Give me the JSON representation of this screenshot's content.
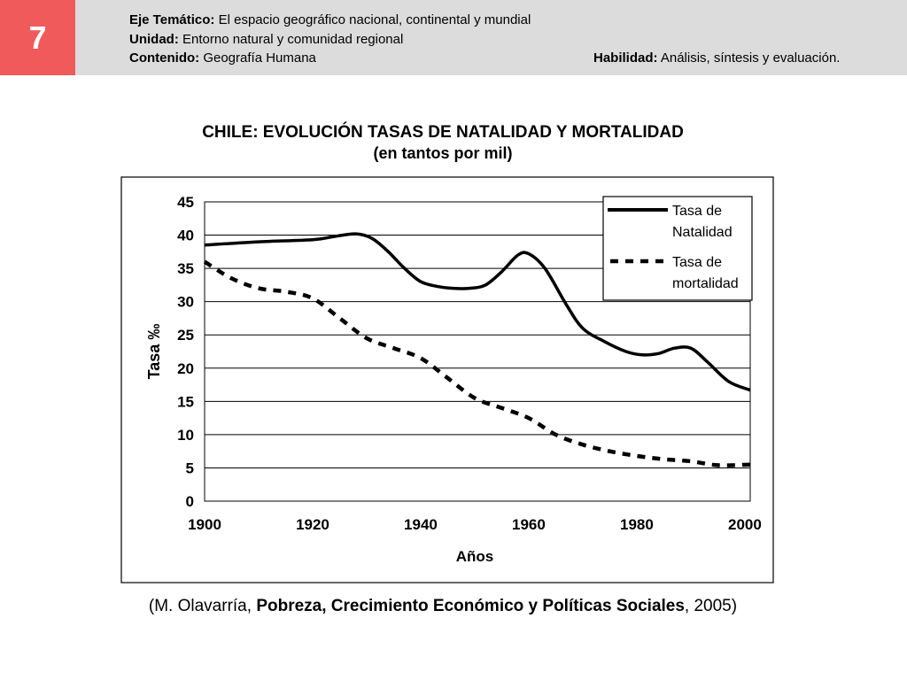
{
  "header": {
    "slide_number": "7",
    "line1_label": "Eje Temático:",
    "line1_value": "El espacio geográfico nacional, continental y mundial",
    "line2_label": "Unidad:",
    "line2_value": "Entorno natural y comunidad regional",
    "line3_label": "Contenido:",
    "line3_value": "Geografía Humana",
    "line4_label": "Habilidad:",
    "line4_value": "Análisis, síntesis y evaluación."
  },
  "source": {
    "open": "(M. Olavarría, ",
    "bold": "Pobreza, Crecimiento Económico y Políticas Sociales",
    "close": ", 2005)"
  },
  "chart_data": {
    "type": "line",
    "title": "CHILE: EVOLUCIÓN TASAS DE NATALIDAD Y MORTALIDAD",
    "subtitle": "(en tantos por mil)",
    "xlabel": "Años",
    "ylabel": "Tasa ‰",
    "xlim": [
      1900,
      2001
    ],
    "ylim": [
      0,
      45
    ],
    "x_ticks": [
      "1900",
      "1920",
      "1940",
      "1960",
      "1980",
      "2000"
    ],
    "y_ticks": [
      "0",
      "5",
      "10",
      "15",
      "20",
      "25",
      "30",
      "35",
      "40",
      "45"
    ],
    "grid": "horizontal",
    "legend_position": "top-right",
    "series": [
      {
        "name": "Tasa de Natalidad",
        "style": "solid",
        "x": [
          1900,
          1910,
          1920,
          1924,
          1928,
          1931,
          1934,
          1937,
          1940,
          1943,
          1946,
          1949,
          1952,
          1955,
          1958,
          1960,
          1963,
          1967,
          1970,
          1974,
          1978,
          1981,
          1984,
          1987,
          1990,
          1993,
          1997,
          2001
        ],
        "y": [
          38.5,
          39.0,
          39.3,
          39.8,
          40.2,
          39.5,
          37.5,
          35.0,
          33.0,
          32.3,
          32.0,
          32.0,
          32.5,
          34.5,
          37.0,
          37.2,
          35.0,
          29.5,
          26.0,
          24.0,
          22.5,
          22.0,
          22.2,
          23.0,
          23.0,
          21.0,
          18.0,
          16.7
        ]
      },
      {
        "name": "Tasa de mortalidad",
        "style": "dashed",
        "x": [
          1900,
          1905,
          1910,
          1915,
          1920,
          1925,
          1930,
          1935,
          1940,
          1945,
          1950,
          1955,
          1960,
          1965,
          1970,
          1975,
          1980,
          1985,
          1990,
          1995,
          2001
        ],
        "y": [
          36.0,
          33.5,
          32.0,
          31.5,
          30.5,
          27.5,
          24.5,
          23.0,
          21.5,
          18.5,
          15.5,
          14.0,
          12.5,
          10.0,
          8.5,
          7.5,
          6.8,
          6.3,
          6.0,
          5.4,
          5.5
        ]
      }
    ],
    "legend_lines": [
      [
        "Tasa de",
        "Natalidad"
      ],
      [
        "Tasa de",
        "mortalidad"
      ]
    ],
    "colors": {
      "series": "#000000",
      "grid": "#000000",
      "background": "#ffffff"
    }
  }
}
